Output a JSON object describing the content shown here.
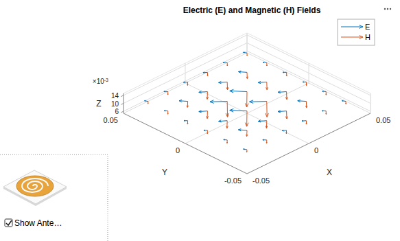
{
  "chart_data": {
    "type": "quiver3",
    "title": "Electric (E) and Magnetic (H) Fields",
    "xlabel": "X",
    "ylabel": "Y",
    "zlabel": "Z",
    "xlim": [
      -0.05,
      0.05
    ],
    "ylim": [
      -0.05,
      0.05
    ],
    "zlim": [
      0.005,
      0.015
    ],
    "xticks": [
      -0.05,
      0,
      0.05
    ],
    "yticks": [
      -0.05,
      0,
      0.05
    ],
    "zticks": [
      {
        "value": 0.006,
        "label": "6"
      },
      {
        "value": 0.01,
        "label": "10"
      },
      {
        "value": 0.014,
        "label": "14"
      }
    ],
    "annotations": [
      {
        "text": "×10",
        "sup": "-3"
      }
    ],
    "grid": true,
    "legend": "northeast",
    "x": [
      -0.04,
      -0.024,
      -0.008,
      0.008,
      0.024,
      0.04,
      -0.04,
      -0.024,
      -0.008,
      0.008,
      0.024,
      0.04,
      -0.04,
      -0.024,
      -0.008,
      0.008,
      0.024,
      0.04,
      -0.04,
      -0.024,
      -0.008,
      0.008,
      0.024,
      0.04,
      -0.04,
      -0.024,
      -0.008,
      0.008,
      0.024,
      0.04,
      -0.04,
      -0.024,
      -0.008,
      0.008,
      0.024,
      0.04
    ],
    "y": [
      -0.04,
      -0.04,
      -0.04,
      -0.04,
      -0.04,
      -0.04,
      -0.024,
      -0.024,
      -0.024,
      -0.024,
      -0.024,
      -0.024,
      -0.008,
      -0.008,
      -0.008,
      -0.008,
      -0.008,
      -0.008,
      0.008,
      0.008,
      0.008,
      0.008,
      0.008,
      0.008,
      0.024,
      0.024,
      0.024,
      0.024,
      0.024,
      0.024,
      0.04,
      0.04,
      0.04,
      0.04,
      0.04,
      0.04
    ],
    "z": [
      0.011,
      0.011,
      0.011,
      0.011,
      0.011,
      0.011,
      0.011,
      0.011,
      0.011,
      0.011,
      0.011,
      0.011,
      0.011,
      0.011,
      0.011,
      0.011,
      0.011,
      0.011,
      0.011,
      0.011,
      0.011,
      0.011,
      0.011,
      0.011,
      0.011,
      0.011,
      0.011,
      0.011,
      0.011,
      0.011,
      0.011,
      0.011,
      0.011,
      0.011,
      0.011,
      0.011
    ],
    "series": [
      {
        "name": "E",
        "color": "#0072bd",
        "u": [
          -0.001,
          -0.0015,
          -0.002,
          -0.002,
          -0.0015,
          -0.001,
          -0.0012,
          -0.003,
          -0.004,
          -0.004,
          -0.003,
          -0.0012,
          -0.0015,
          -0.004,
          -0.008,
          -0.009,
          -0.004,
          -0.0015,
          -0.0015,
          -0.004,
          -0.009,
          -0.008,
          -0.004,
          -0.0015,
          -0.0012,
          -0.003,
          -0.004,
          -0.004,
          -0.003,
          -0.0012,
          -0.001,
          -0.0015,
          -0.002,
          -0.002,
          -0.0015,
          -0.001
        ],
        "v": [
          0.002,
          0.0018,
          0.0015,
          0.0015,
          0.0018,
          0.002,
          0.0018,
          0.004,
          0.003,
          0.003,
          0.004,
          0.0018,
          0.0015,
          0.003,
          0.006,
          0.005,
          0.003,
          0.0015,
          0.0015,
          0.003,
          0.005,
          0.006,
          0.003,
          0.0015,
          0.0018,
          0.004,
          0.003,
          0.003,
          0.004,
          0.0018,
          0.002,
          0.0018,
          0.0015,
          0.0015,
          0.0018,
          0.002
        ],
        "w": [
          0,
          0,
          0,
          0,
          0,
          0,
          0,
          0,
          0,
          0,
          0,
          0,
          0,
          0,
          0.001,
          0.001,
          0,
          0,
          0,
          0,
          0.001,
          0.001,
          0,
          0,
          0,
          0,
          0,
          0,
          0,
          0,
          0,
          0,
          0,
          0,
          0,
          0
        ]
      },
      {
        "name": "H",
        "color": "#d95319",
        "u": [
          -0.0008,
          -0.001,
          -0.0012,
          -0.0012,
          -0.001,
          -0.0008,
          -0.001,
          -0.0018,
          -0.0022,
          -0.0022,
          -0.0018,
          -0.001,
          -0.0012,
          -0.0022,
          -0.003,
          -0.003,
          -0.0022,
          -0.0012,
          -0.0012,
          -0.0022,
          -0.003,
          -0.003,
          -0.0022,
          -0.0012,
          -0.001,
          -0.0018,
          -0.0022,
          -0.0022,
          -0.0018,
          -0.001,
          -0.0008,
          -0.001,
          -0.0012,
          -0.0012,
          -0.001,
          -0.0008
        ],
        "v": [
          -0.0006,
          -0.0009,
          -0.0011,
          -0.0013,
          -0.0011,
          -0.0009,
          -0.0009,
          -0.0016,
          -0.002,
          -0.0024,
          -0.002,
          -0.0011,
          -0.0011,
          -0.002,
          -0.0028,
          -0.0032,
          -0.0024,
          -0.0013,
          -0.0011,
          -0.002,
          -0.0032,
          -0.0028,
          -0.0024,
          -0.0013,
          -0.0009,
          -0.0016,
          -0.002,
          -0.0024,
          -0.002,
          -0.0011,
          -0.0006,
          -0.0009,
          -0.0011,
          -0.0013,
          -0.0011,
          -0.0009
        ],
        "w": [
          -0.0008,
          -0.001,
          -0.001,
          -0.001,
          -0.001,
          -0.0008,
          -0.001,
          -0.002,
          -0.0025,
          -0.0025,
          -0.002,
          -0.001,
          -0.001,
          -0.0025,
          -0.006,
          -0.006,
          -0.0025,
          -0.001,
          -0.001,
          -0.0025,
          -0.006,
          -0.006,
          -0.0025,
          -0.001,
          -0.001,
          -0.002,
          -0.0025,
          -0.0025,
          -0.002,
          -0.001,
          -0.0008,
          -0.001,
          -0.001,
          -0.001,
          -0.001,
          -0.0008
        ]
      }
    ]
  },
  "panel": {
    "checkbox_label": "Show Ante…",
    "checked": true
  }
}
